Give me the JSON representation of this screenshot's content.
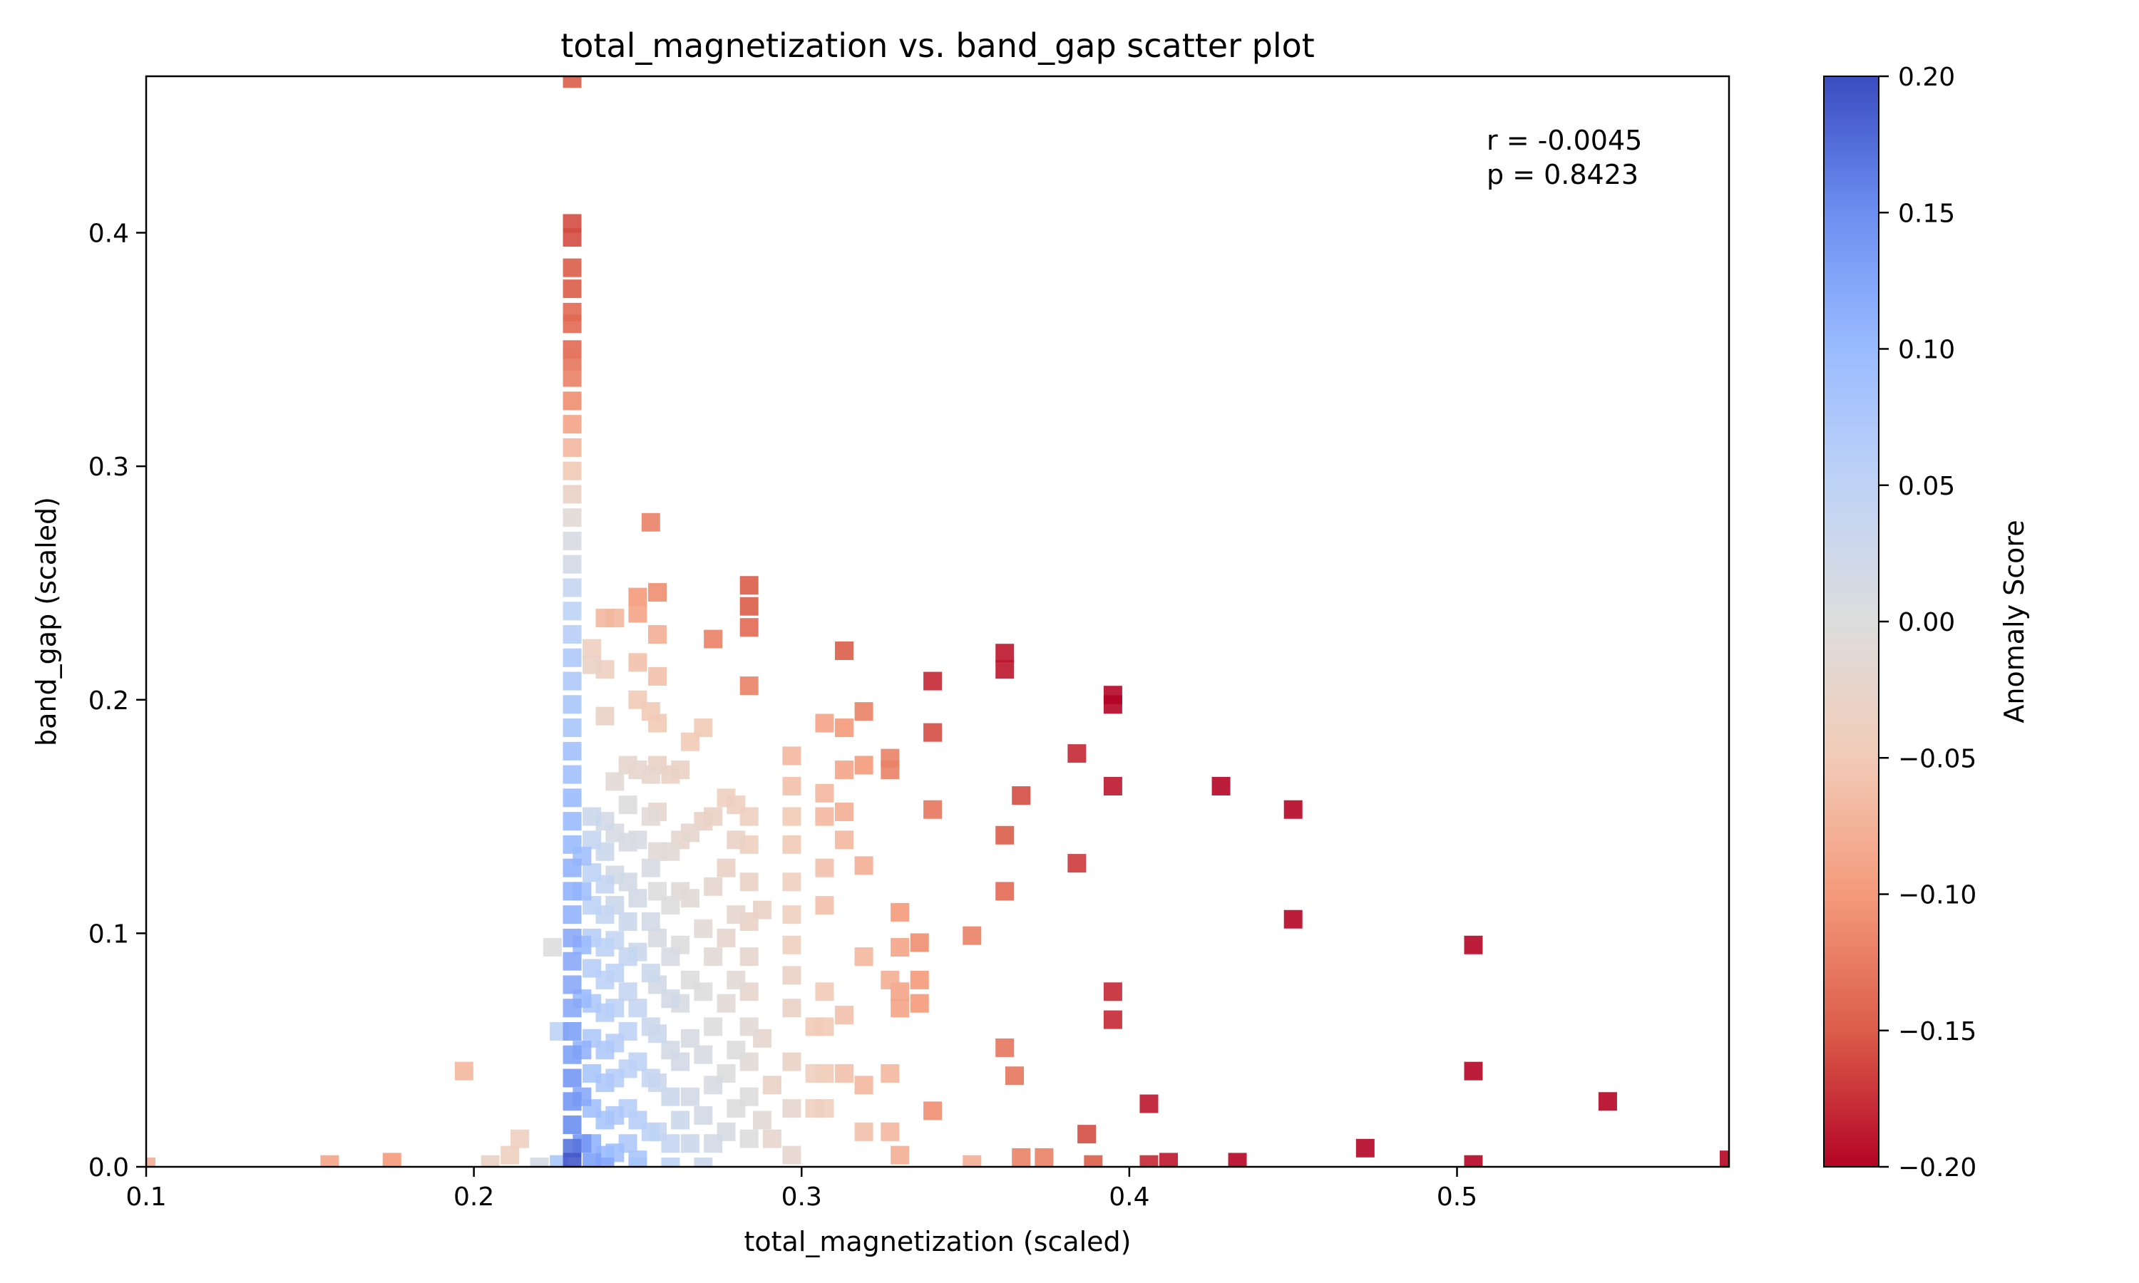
{
  "chart_data": {
    "type": "scatter",
    "title": "total_magnetization vs. band_gap scatter plot",
    "xlabel": "total_magnetization (scaled)",
    "ylabel": "band_gap (scaled)",
    "xlim": [
      0.1,
      0.583
    ],
    "ylim": [
      0.0,
      0.467
    ],
    "xticks": [
      "0.1",
      "0.2",
      "0.3",
      "0.4",
      "0.5"
    ],
    "yticks": [
      "0.0",
      "0.1",
      "0.2",
      "0.3",
      "0.4"
    ],
    "marker": "square",
    "grid": false,
    "annotation": {
      "r": "r = -0.0045",
      "p": "p = 0.8423",
      "position": "top-right"
    },
    "colorbar": {
      "label": "Anomaly Score",
      "colormap": "coolwarm (reversed: blue = high, red = low)",
      "range": [
        -0.2,
        0.2
      ],
      "ticks": [
        "0.20",
        "0.15",
        "0.10",
        "0.05",
        "0.00",
        "−0.05",
        "−0.10",
        "−0.15",
        "−0.20"
      ],
      "colors": {
        "high": "#3b4cc0",
        "mid": "#dddddd",
        "low": "#b40426"
      }
    },
    "points": [
      [
        0.23,
        0.466,
        -0.15
      ],
      [
        0.23,
        0.404,
        -0.16
      ],
      [
        0.23,
        0.398,
        -0.16
      ],
      [
        0.23,
        0.385,
        -0.15
      ],
      [
        0.23,
        0.376,
        -0.15
      ],
      [
        0.23,
        0.366,
        -0.14
      ],
      [
        0.23,
        0.361,
        -0.14
      ],
      [
        0.23,
        0.35,
        -0.14
      ],
      [
        0.23,
        0.345,
        -0.13
      ],
      [
        0.23,
        0.338,
        -0.12
      ],
      [
        0.23,
        0.328,
        -0.11
      ],
      [
        0.23,
        0.318,
        -0.09
      ],
      [
        0.23,
        0.308,
        -0.07
      ],
      [
        0.23,
        0.298,
        -0.05
      ],
      [
        0.23,
        0.288,
        -0.03
      ],
      [
        0.23,
        0.278,
        -0.01
      ],
      [
        0.23,
        0.268,
        0.01
      ],
      [
        0.23,
        0.258,
        0.02
      ],
      [
        0.23,
        0.248,
        0.04
      ],
      [
        0.23,
        0.238,
        0.05
      ],
      [
        0.23,
        0.228,
        0.06
      ],
      [
        0.23,
        0.218,
        0.07
      ],
      [
        0.23,
        0.208,
        0.07
      ],
      [
        0.23,
        0.198,
        0.08
      ],
      [
        0.23,
        0.188,
        0.08
      ],
      [
        0.23,
        0.178,
        0.09
      ],
      [
        0.23,
        0.168,
        0.09
      ],
      [
        0.23,
        0.158,
        0.1
      ],
      [
        0.23,
        0.148,
        0.1
      ],
      [
        0.23,
        0.138,
        0.1
      ],
      [
        0.23,
        0.128,
        0.11
      ],
      [
        0.23,
        0.118,
        0.11
      ],
      [
        0.23,
        0.108,
        0.11
      ],
      [
        0.23,
        0.098,
        0.12
      ],
      [
        0.23,
        0.088,
        0.12
      ],
      [
        0.23,
        0.078,
        0.12
      ],
      [
        0.23,
        0.068,
        0.12
      ],
      [
        0.23,
        0.058,
        0.13
      ],
      [
        0.23,
        0.048,
        0.13
      ],
      [
        0.23,
        0.038,
        0.14
      ],
      [
        0.23,
        0.028,
        0.14
      ],
      [
        0.23,
        0.018,
        0.15
      ],
      [
        0.23,
        0.008,
        0.17
      ],
      [
        0.23,
        0.002,
        0.19
      ],
      [
        0.233,
        0.133,
        0.09
      ],
      [
        0.233,
        0.118,
        0.09
      ],
      [
        0.233,
        0.095,
        0.1
      ],
      [
        0.233,
        0.072,
        0.1
      ],
      [
        0.233,
        0.05,
        0.11
      ],
      [
        0.233,
        0.03,
        0.12
      ],
      [
        0.233,
        0.01,
        0.14
      ],
      [
        0.236,
        0.222,
        -0.04
      ],
      [
        0.236,
        0.215,
        -0.03
      ],
      [
        0.236,
        0.15,
        0.03
      ],
      [
        0.236,
        0.14,
        0.04
      ],
      [
        0.236,
        0.126,
        0.05
      ],
      [
        0.236,
        0.112,
        0.05
      ],
      [
        0.236,
        0.098,
        0.06
      ],
      [
        0.236,
        0.085,
        0.06
      ],
      [
        0.236,
        0.07,
        0.07
      ],
      [
        0.236,
        0.055,
        0.07
      ],
      [
        0.236,
        0.04,
        0.08
      ],
      [
        0.236,
        0.025,
        0.09
      ],
      [
        0.236,
        0.01,
        0.11
      ],
      [
        0.236,
        0.002,
        0.13
      ],
      [
        0.24,
        0.235,
        -0.07
      ],
      [
        0.24,
        0.213,
        -0.04
      ],
      [
        0.24,
        0.193,
        -0.03
      ],
      [
        0.24,
        0.148,
        0.02
      ],
      [
        0.24,
        0.135,
        0.03
      ],
      [
        0.24,
        0.121,
        0.04
      ],
      [
        0.24,
        0.108,
        0.04
      ],
      [
        0.24,
        0.094,
        0.05
      ],
      [
        0.24,
        0.08,
        0.05
      ],
      [
        0.24,
        0.066,
        0.06
      ],
      [
        0.24,
        0.05,
        0.07
      ],
      [
        0.24,
        0.036,
        0.07
      ],
      [
        0.24,
        0.02,
        0.08
      ],
      [
        0.24,
        0.005,
        0.1
      ],
      [
        0.243,
        0.235,
        -0.07
      ],
      [
        0.243,
        0.165,
        -0.01
      ],
      [
        0.243,
        0.143,
        0.01
      ],
      [
        0.243,
        0.125,
        0.02
      ],
      [
        0.243,
        0.112,
        0.03
      ],
      [
        0.243,
        0.097,
        0.04
      ],
      [
        0.243,
        0.083,
        0.05
      ],
      [
        0.243,
        0.068,
        0.05
      ],
      [
        0.243,
        0.053,
        0.06
      ],
      [
        0.243,
        0.038,
        0.06
      ],
      [
        0.243,
        0.022,
        0.07
      ],
      [
        0.243,
        0.006,
        0.09
      ],
      [
        0.247,
        0.172,
        -0.02
      ],
      [
        0.247,
        0.155,
        0.0
      ],
      [
        0.247,
        0.139,
        0.01
      ],
      [
        0.247,
        0.122,
        0.02
      ],
      [
        0.247,
        0.105,
        0.03
      ],
      [
        0.247,
        0.09,
        0.04
      ],
      [
        0.247,
        0.075,
        0.04
      ],
      [
        0.247,
        0.058,
        0.05
      ],
      [
        0.247,
        0.042,
        0.05
      ],
      [
        0.247,
        0.025,
        0.06
      ],
      [
        0.247,
        0.01,
        0.07
      ],
      [
        0.25,
        0.244,
        -0.1
      ],
      [
        0.25,
        0.237,
        -0.09
      ],
      [
        0.25,
        0.216,
        -0.06
      ],
      [
        0.25,
        0.2,
        -0.05
      ],
      [
        0.25,
        0.17,
        -0.02
      ],
      [
        0.25,
        0.14,
        0.01
      ],
      [
        0.25,
        0.115,
        0.02
      ],
      [
        0.25,
        0.092,
        0.03
      ],
      [
        0.25,
        0.068,
        0.04
      ],
      [
        0.25,
        0.045,
        0.05
      ],
      [
        0.25,
        0.02,
        0.06
      ],
      [
        0.25,
        0.003,
        0.08
      ],
      [
        0.254,
        0.276,
        -0.12
      ],
      [
        0.254,
        0.195,
        -0.05
      ],
      [
        0.254,
        0.168,
        -0.02
      ],
      [
        0.254,
        0.15,
        -0.01
      ],
      [
        0.254,
        0.128,
        0.01
      ],
      [
        0.254,
        0.105,
        0.02
      ],
      [
        0.254,
        0.083,
        0.03
      ],
      [
        0.254,
        0.06,
        0.03
      ],
      [
        0.254,
        0.038,
        0.04
      ],
      [
        0.254,
        0.015,
        0.05
      ],
      [
        0.256,
        0.246,
        -0.11
      ],
      [
        0.256,
        0.228,
        -0.08
      ],
      [
        0.256,
        0.21,
        -0.06
      ],
      [
        0.256,
        0.19,
        -0.05
      ],
      [
        0.256,
        0.172,
        -0.03
      ],
      [
        0.256,
        0.152,
        -0.02
      ],
      [
        0.256,
        0.135,
        -0.01
      ],
      [
        0.256,
        0.118,
        0.0
      ],
      [
        0.256,
        0.098,
        0.01
      ],
      [
        0.256,
        0.078,
        0.02
      ],
      [
        0.256,
        0.057,
        0.03
      ],
      [
        0.256,
        0.036,
        0.03
      ],
      [
        0.256,
        0.015,
        0.04
      ],
      [
        0.26,
        0.168,
        -0.03
      ],
      [
        0.26,
        0.135,
        -0.01
      ],
      [
        0.26,
        0.112,
        0.0
      ],
      [
        0.26,
        0.09,
        0.01
      ],
      [
        0.26,
        0.072,
        0.02
      ],
      [
        0.26,
        0.05,
        0.02
      ],
      [
        0.26,
        0.03,
        0.03
      ],
      [
        0.26,
        0.01,
        0.04
      ],
      [
        0.263,
        0.17,
        -0.03
      ],
      [
        0.263,
        0.14,
        -0.02
      ],
      [
        0.263,
        0.118,
        -0.01
      ],
      [
        0.263,
        0.095,
        0.0
      ],
      [
        0.263,
        0.07,
        0.01
      ],
      [
        0.263,
        0.045,
        0.02
      ],
      [
        0.263,
        0.02,
        0.03
      ],
      [
        0.266,
        0.182,
        -0.05
      ],
      [
        0.266,
        0.143,
        -0.02
      ],
      [
        0.266,
        0.115,
        -0.01
      ],
      [
        0.266,
        0.08,
        0.0
      ],
      [
        0.266,
        0.055,
        0.01
      ],
      [
        0.266,
        0.03,
        0.02
      ],
      [
        0.266,
        0.01,
        0.03
      ],
      [
        0.27,
        0.188,
        -0.05
      ],
      [
        0.27,
        0.148,
        -0.03
      ],
      [
        0.27,
        0.102,
        -0.01
      ],
      [
        0.27,
        0.075,
        0.0
      ],
      [
        0.27,
        0.048,
        0.01
      ],
      [
        0.27,
        0.022,
        0.02
      ],
      [
        0.273,
        0.226,
        -0.12
      ],
      [
        0.273,
        0.15,
        -0.03
      ],
      [
        0.273,
        0.12,
        -0.02
      ],
      [
        0.273,
        0.09,
        -0.01
      ],
      [
        0.273,
        0.06,
        0.0
      ],
      [
        0.273,
        0.035,
        0.01
      ],
      [
        0.273,
        0.01,
        0.02
      ],
      [
        0.277,
        0.158,
        -0.04
      ],
      [
        0.277,
        0.128,
        -0.03
      ],
      [
        0.277,
        0.098,
        -0.02
      ],
      [
        0.277,
        0.07,
        -0.01
      ],
      [
        0.277,
        0.04,
        0.0
      ],
      [
        0.277,
        0.015,
        0.01
      ],
      [
        0.28,
        0.155,
        -0.04
      ],
      [
        0.28,
        0.14,
        -0.03
      ],
      [
        0.28,
        0.108,
        -0.02
      ],
      [
        0.28,
        0.08,
        -0.01
      ],
      [
        0.28,
        0.05,
        0.0
      ],
      [
        0.28,
        0.025,
        0.0
      ],
      [
        0.284,
        0.249,
        -0.15
      ],
      [
        0.284,
        0.24,
        -0.15
      ],
      [
        0.284,
        0.231,
        -0.14
      ],
      [
        0.284,
        0.206,
        -0.12
      ],
      [
        0.284,
        0.15,
        -0.04
      ],
      [
        0.284,
        0.138,
        -0.04
      ],
      [
        0.284,
        0.122,
        -0.03
      ],
      [
        0.284,
        0.105,
        -0.03
      ],
      [
        0.284,
        0.09,
        -0.02
      ],
      [
        0.284,
        0.075,
        -0.02
      ],
      [
        0.284,
        0.06,
        -0.01
      ],
      [
        0.284,
        0.045,
        -0.01
      ],
      [
        0.284,
        0.03,
        0.0
      ],
      [
        0.284,
        0.012,
        0.0
      ],
      [
        0.288,
        0.11,
        -0.03
      ],
      [
        0.288,
        0.055,
        -0.02
      ],
      [
        0.288,
        0.02,
        -0.01
      ],
      [
        0.291,
        0.035,
        -0.03
      ],
      [
        0.291,
        0.012,
        -0.02
      ],
      [
        0.297,
        0.176,
        -0.07
      ],
      [
        0.297,
        0.163,
        -0.06
      ],
      [
        0.297,
        0.15,
        -0.05
      ],
      [
        0.297,
        0.138,
        -0.05
      ],
      [
        0.297,
        0.122,
        -0.04
      ],
      [
        0.297,
        0.108,
        -0.04
      ],
      [
        0.297,
        0.095,
        -0.04
      ],
      [
        0.297,
        0.082,
        -0.03
      ],
      [
        0.297,
        0.068,
        -0.03
      ],
      [
        0.297,
        0.045,
        -0.03
      ],
      [
        0.297,
        0.025,
        -0.02
      ],
      [
        0.297,
        0.005,
        -0.02
      ],
      [
        0.304,
        0.06,
        -0.05
      ],
      [
        0.304,
        0.04,
        -0.04
      ],
      [
        0.304,
        0.025,
        -0.04
      ],
      [
        0.307,
        0.19,
        -0.09
      ],
      [
        0.307,
        0.16,
        -0.07
      ],
      [
        0.307,
        0.15,
        -0.07
      ],
      [
        0.307,
        0.128,
        -0.06
      ],
      [
        0.307,
        0.112,
        -0.06
      ],
      [
        0.307,
        0.075,
        -0.05
      ],
      [
        0.307,
        0.06,
        -0.05
      ],
      [
        0.307,
        0.04,
        -0.05
      ],
      [
        0.307,
        0.025,
        -0.04
      ],
      [
        0.313,
        0.221,
        -0.15
      ],
      [
        0.313,
        0.188,
        -0.1
      ],
      [
        0.313,
        0.17,
        -0.09
      ],
      [
        0.313,
        0.152,
        -0.08
      ],
      [
        0.313,
        0.14,
        -0.07
      ],
      [
        0.313,
        0.065,
        -0.06
      ],
      [
        0.313,
        0.04,
        -0.06
      ],
      [
        0.319,
        0.195,
        -0.12
      ],
      [
        0.319,
        0.172,
        -0.1
      ],
      [
        0.319,
        0.129,
        -0.08
      ],
      [
        0.319,
        0.09,
        -0.07
      ],
      [
        0.319,
        0.035,
        -0.07
      ],
      [
        0.319,
        0.015,
        -0.06
      ],
      [
        0.327,
        0.175,
        -0.12
      ],
      [
        0.327,
        0.17,
        -0.12
      ],
      [
        0.327,
        0.08,
        -0.08
      ],
      [
        0.327,
        0.04,
        -0.07
      ],
      [
        0.327,
        0.015,
        -0.07
      ],
      [
        0.33,
        0.109,
        -0.1
      ],
      [
        0.33,
        0.094,
        -0.09
      ],
      [
        0.33,
        0.075,
        -0.09
      ],
      [
        0.33,
        0.068,
        -0.09
      ],
      [
        0.33,
        0.005,
        -0.08
      ],
      [
        0.336,
        0.096,
        -0.11
      ],
      [
        0.336,
        0.08,
        -0.1
      ],
      [
        0.336,
        0.07,
        -0.1
      ],
      [
        0.34,
        0.208,
        -0.18
      ],
      [
        0.34,
        0.186,
        -0.16
      ],
      [
        0.34,
        0.153,
        -0.13
      ],
      [
        0.34,
        0.024,
        -0.11
      ],
      [
        0.352,
        0.099,
        -0.12
      ],
      [
        0.352,
        0.001,
        -0.08
      ],
      [
        0.362,
        0.22,
        -0.19
      ],
      [
        0.362,
        0.213,
        -0.19
      ],
      [
        0.362,
        0.142,
        -0.15
      ],
      [
        0.362,
        0.118,
        -0.14
      ],
      [
        0.362,
        0.051,
        -0.13
      ],
      [
        0.365,
        0.039,
        -0.13
      ],
      [
        0.367,
        0.159,
        -0.16
      ],
      [
        0.367,
        0.004,
        -0.12
      ],
      [
        0.374,
        0.004,
        -0.12
      ],
      [
        0.384,
        0.177,
        -0.18
      ],
      [
        0.384,
        0.13,
        -0.17
      ],
      [
        0.387,
        0.014,
        -0.16
      ],
      [
        0.389,
        0.001,
        -0.15
      ],
      [
        0.395,
        0.202,
        -0.2
      ],
      [
        0.395,
        0.198,
        -0.2
      ],
      [
        0.395,
        0.163,
        -0.19
      ],
      [
        0.395,
        0.075,
        -0.18
      ],
      [
        0.395,
        0.063,
        -0.18
      ],
      [
        0.406,
        0.027,
        -0.19
      ],
      [
        0.406,
        0.001,
        -0.18
      ],
      [
        0.412,
        0.002,
        -0.19
      ],
      [
        0.428,
        0.163,
        -0.2
      ],
      [
        0.433,
        0.002,
        -0.2
      ],
      [
        0.45,
        0.153,
        -0.2
      ],
      [
        0.45,
        0.106,
        -0.2
      ],
      [
        0.472,
        0.008,
        -0.2
      ],
      [
        0.505,
        0.095,
        -0.2
      ],
      [
        0.505,
        0.041,
        -0.2
      ],
      [
        0.505,
        0.001,
        -0.2
      ],
      [
        0.546,
        0.028,
        -0.2
      ],
      [
        0.583,
        0.003,
        -0.2
      ],
      [
        0.1,
        0.0,
        -0.08
      ],
      [
        0.156,
        0.001,
        -0.09
      ],
      [
        0.175,
        0.002,
        -0.1
      ],
      [
        0.197,
        0.041,
        -0.07
      ],
      [
        0.205,
        0.001,
        -0.03
      ],
      [
        0.211,
        0.005,
        -0.04
      ],
      [
        0.214,
        0.012,
        -0.04
      ],
      [
        0.224,
        0.094,
        0.0
      ],
      [
        0.226,
        0.058,
        0.05
      ],
      [
        0.226,
        0.001,
        0.08
      ],
      [
        0.22,
        0.0,
        0.02
      ],
      [
        0.24,
        0.0,
        0.12
      ],
      [
        0.25,
        0.0,
        0.08
      ],
      [
        0.26,
        0.0,
        0.05
      ],
      [
        0.27,
        0.0,
        0.03
      ]
    ]
  }
}
